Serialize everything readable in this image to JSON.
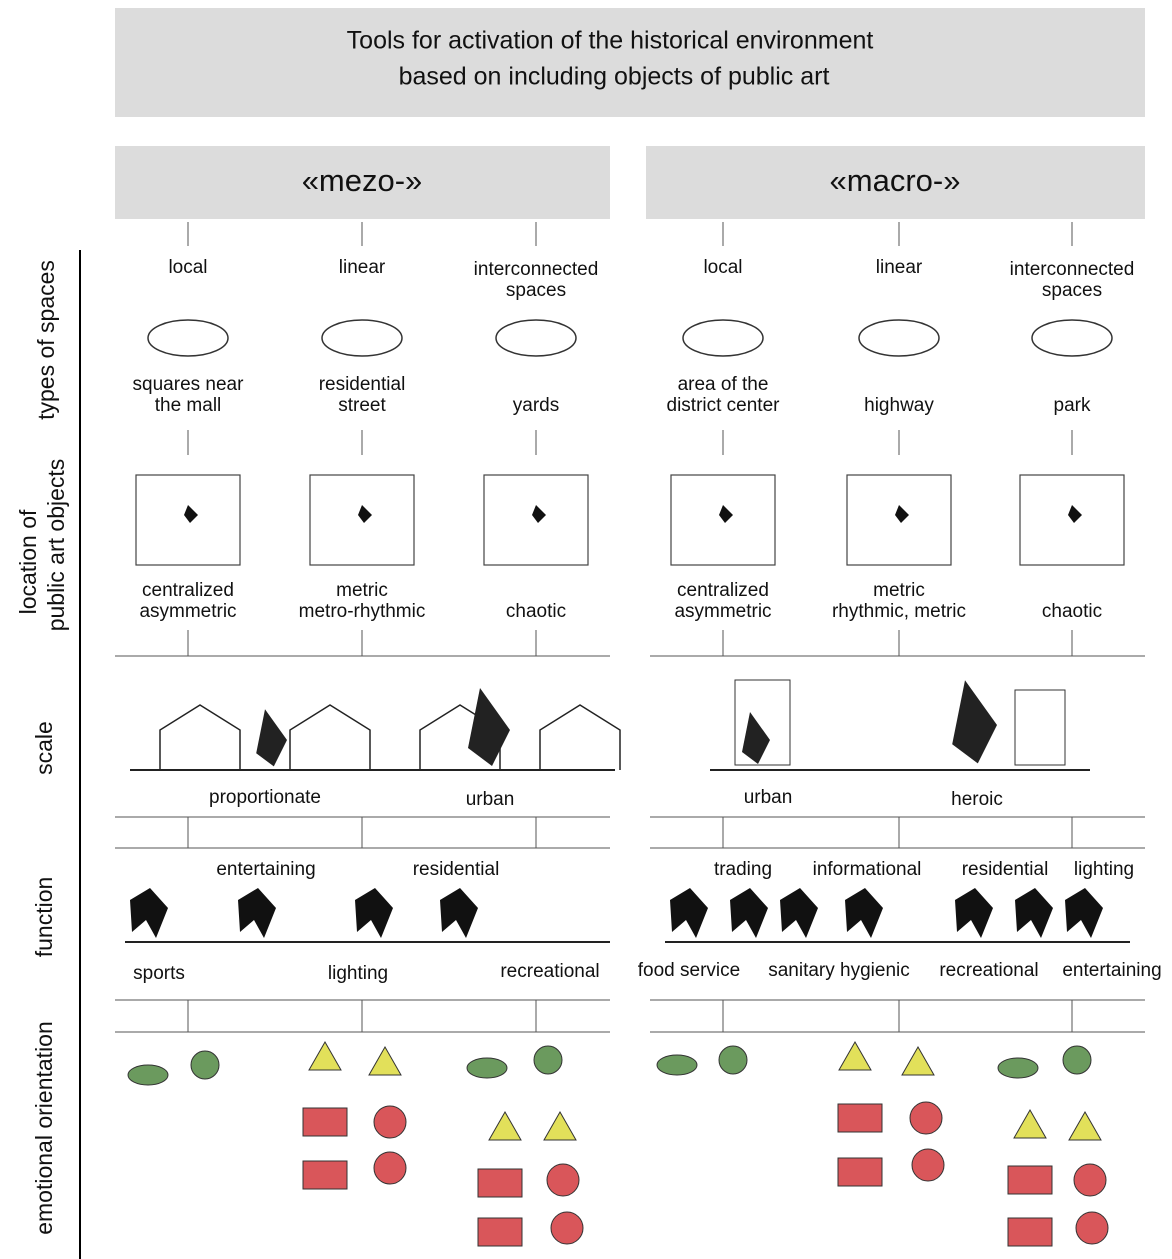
{
  "header": {
    "title": [
      "Tools for activation of the historical environment",
      "based on including objects of public art"
    ]
  },
  "row_labels": {
    "types_of_spaces": "types of spaces",
    "location": [
      "location of",
      "public art objects"
    ],
    "scale": "scale",
    "function": "function",
    "emotional_orientation": "emotional orientation"
  },
  "groups": [
    {
      "label": "«mezo-»",
      "types": [
        [
          "local"
        ],
        [
          "linear"
        ],
        [
          "interconnected",
          "spaces"
        ]
      ],
      "spaces": [
        [
          "squares near",
          "the mall"
        ],
        [
          "residential",
          "street"
        ],
        [
          "yards"
        ]
      ],
      "locations": [
        [
          "centralized",
          "asymmetric"
        ],
        [
          "metric",
          "metro-rhythmic"
        ],
        [
          "chaotic"
        ]
      ],
      "scale": [
        "proportionate",
        "urban"
      ],
      "function_top": [
        "entertaining",
        "residential"
      ],
      "function_bottom": [
        "sports",
        "lighting",
        "recreational"
      ]
    },
    {
      "label": "«macro-»",
      "types": [
        [
          "local"
        ],
        [
          "linear"
        ],
        [
          "interconnected",
          "spaces"
        ]
      ],
      "spaces": [
        [
          "area of the",
          "district center"
        ],
        [
          "highway"
        ],
        [
          "park"
        ]
      ],
      "locations": [
        [
          "centralized",
          "asymmetric"
        ],
        [
          "metric",
          "rhythmic, metric"
        ],
        [
          "chaotic"
        ]
      ],
      "scale": [
        "urban",
        "heroic"
      ],
      "function_top": [
        "trading",
        "informational",
        "residential",
        "lighting"
      ],
      "function_bottom": [
        "food service",
        "sanitary hygienic",
        "recreational",
        "entertaining"
      ]
    }
  ]
}
